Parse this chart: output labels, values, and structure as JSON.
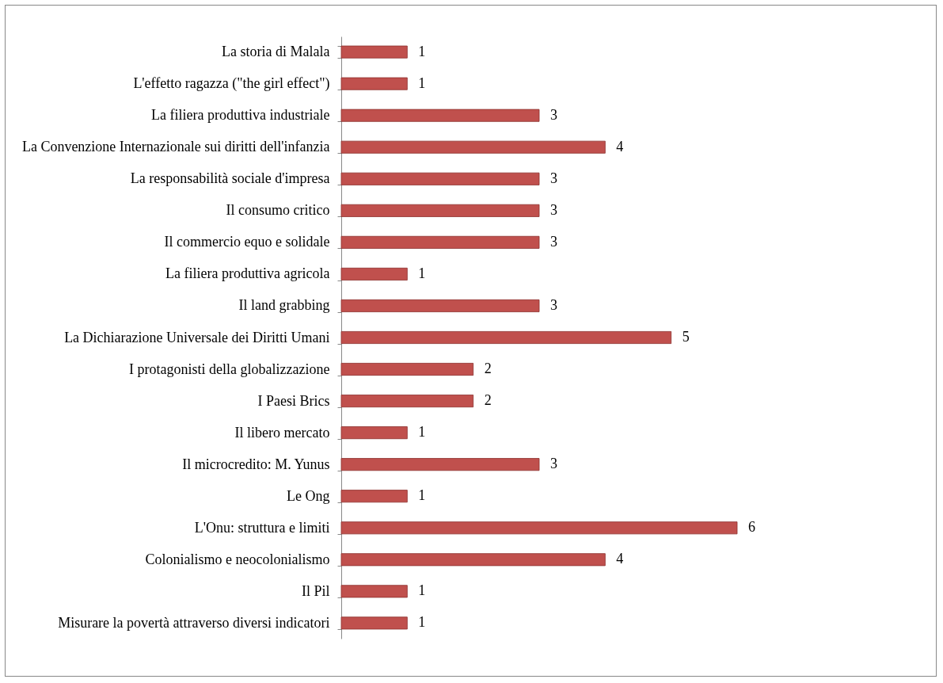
{
  "chart_data": {
    "type": "bar",
    "orientation": "horizontal",
    "data_labels": true,
    "color": "#c0504d",
    "categories": [
      "La storia di Malala",
      "L'effetto ragazza (\"the girl effect\")",
      "La filiera produttiva industriale ",
      "La Convenzione Internazionale sui diritti dell'infanzia",
      "La responsabilità sociale d'impresa",
      "Il consumo critico",
      "Il commercio equo e solidale",
      "La filiera produttiva agricola",
      "Il land grabbing",
      "La Dichiarazione Universale dei Diritti Umani",
      "I protagonisti della globalizzazione",
      "I Paesi Brics",
      "Il libero mercato",
      "Il microcredito: M. Yunus",
      "Le Ong",
      "L'Onu: struttura e limiti",
      "Colonialismo e neocolonialismo",
      "Il Pil",
      "Misurare la povertà attraverso diversi indicatori"
    ],
    "values": [
      1,
      1,
      3,
      4,
      3,
      3,
      3,
      1,
      3,
      5,
      2,
      2,
      1,
      3,
      1,
      6,
      4,
      1,
      1
    ]
  }
}
